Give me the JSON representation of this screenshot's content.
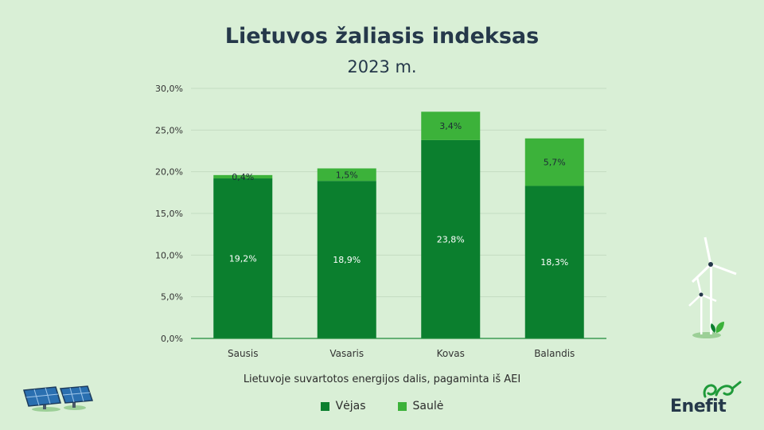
{
  "title": "Lietuvos žaliasis indeksas",
  "subtitle": "2023 m.",
  "caption": "Lietuvoje suvartotos energijos dalis, pagaminta iš AEI",
  "brand": "Enefit",
  "colors": {
    "background": "#d9efd6",
    "wind": "#0b7f2e",
    "solar": "#3cb23a",
    "axis": "#1f8a3a",
    "grid": "#c4dcc2",
    "text": "#25384a"
  },
  "chart_data": {
    "type": "bar",
    "stacked": true,
    "categories": [
      "Sausis",
      "Vasaris",
      "Kovas",
      "Balandis"
    ],
    "series": [
      {
        "name": "Vėjas",
        "values": [
          19.2,
          18.9,
          23.8,
          18.3
        ],
        "labels": [
          "19,2%",
          "18,9%",
          "23,8%",
          "18,3%"
        ]
      },
      {
        "name": "Saulė",
        "values": [
          0.4,
          1.5,
          3.4,
          5.7
        ],
        "labels": [
          "0,4%",
          "1,5%",
          "3,4%",
          "5,7%"
        ]
      }
    ],
    "ylim": [
      0,
      30
    ],
    "yticks": [
      "0,0%",
      "5,0%",
      "10,0%",
      "15,0%",
      "20,0%",
      "25,0%",
      "30,0%"
    ],
    "grid": true,
    "legend_position": "bottom"
  }
}
